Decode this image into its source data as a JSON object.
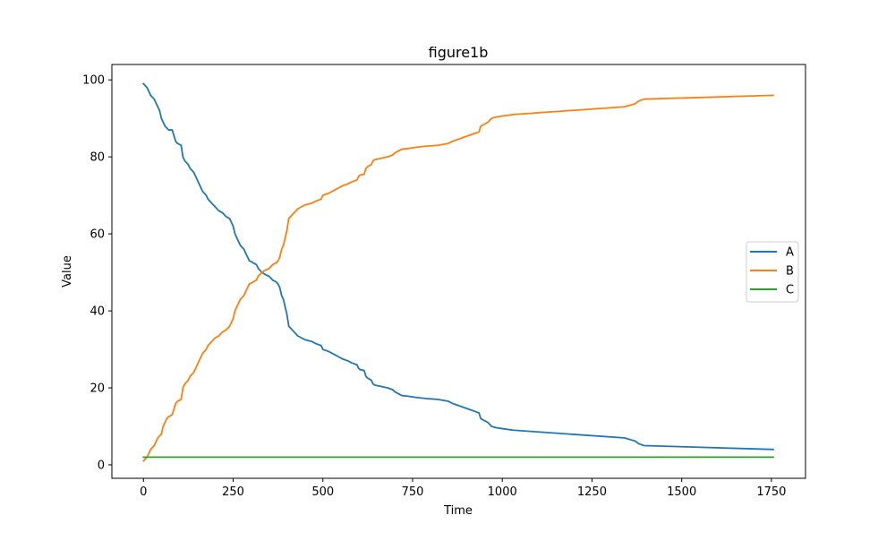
{
  "chart_data": {
    "type": "line",
    "title": "figure1b",
    "xlabel": "Time",
    "ylabel": "Value",
    "xlim": [
      -88,
      1845
    ],
    "ylim": [
      -3.5,
      104
    ],
    "xticks": [
      0,
      250,
      500,
      750,
      1000,
      1250,
      1500,
      1750
    ],
    "xtick_labels": [
      "0",
      "250",
      "500",
      "750",
      "1000",
      "1250",
      "1500",
      "1750"
    ],
    "yticks": [
      0,
      20,
      40,
      60,
      80,
      100
    ],
    "ytick_labels": [
      "0",
      "20",
      "40",
      "60",
      "80",
      "100"
    ],
    "grid": false,
    "legend_position": "center-right",
    "series": [
      {
        "name": "A",
        "color": "#1f77b4",
        "x": [
          0,
          10,
          15,
          20,
          30,
          35,
          40,
          45,
          50,
          55,
          60,
          65,
          70,
          80,
          90,
          95,
          105,
          110,
          115,
          125,
          130,
          140,
          145,
          150,
          160,
          165,
          175,
          180,
          190,
          200,
          210,
          220,
          230,
          240,
          245,
          250,
          255,
          260,
          265,
          270,
          280,
          285,
          290,
          295,
          300,
          305,
          315,
          320,
          325,
          330,
          335,
          340,
          350,
          360,
          370,
          375,
          380,
          385,
          390,
          395,
          400,
          405,
          410,
          415,
          420,
          430,
          440,
          450,
          470,
          480,
          495,
          500,
          505,
          515,
          525,
          535,
          545,
          555,
          570,
          580,
          595,
          600,
          605,
          615,
          620,
          625,
          635,
          640,
          645,
          660,
          680,
          695,
          700,
          710,
          720,
          740,
          760,
          790,
          820,
          850,
          860,
          875,
          890,
          905,
          920,
          935,
          940,
          950,
          960,
          970,
          980,
          1000,
          1030,
          1340,
          1370,
          1380,
          1395,
          1755
        ],
        "y": [
          99,
          98,
          97,
          96,
          95,
          94,
          93,
          92,
          90,
          89,
          88,
          87.5,
          87,
          87,
          84,
          83.5,
          83,
          80,
          79,
          78,
          77,
          76,
          75,
          74,
          72,
          71,
          70,
          69,
          68,
          67,
          66,
          65.5,
          64.5,
          64,
          63,
          62,
          60,
          59,
          58,
          57,
          56,
          55,
          54,
          53,
          52.8,
          52.5,
          52,
          51,
          50.5,
          50,
          49.7,
          49.4,
          49,
          48,
          47.5,
          47,
          46,
          44,
          43,
          41,
          39,
          36,
          35.5,
          35,
          34.5,
          33.5,
          33,
          32.5,
          32,
          31.5,
          31,
          30,
          29.8,
          29.5,
          29,
          28.5,
          28,
          27.5,
          27,
          26.5,
          26,
          25,
          24.7,
          24.5,
          23,
          22.5,
          22,
          21,
          20.7,
          20.4,
          20,
          19.5,
          19,
          18.5,
          18,
          17.8,
          17.5,
          17.2,
          17,
          16.5,
          16,
          15.5,
          15,
          14.5,
          14,
          13.5,
          12,
          11.5,
          11,
          10,
          9.7,
          9.4,
          9,
          7,
          6.2,
          5.5,
          5,
          4
        ]
      },
      {
        "name": "B",
        "color": "#ff7f0e",
        "x": [
          0,
          10,
          15,
          20,
          25,
          30,
          35,
          40,
          45,
          50,
          55,
          60,
          65,
          70,
          80,
          90,
          95,
          105,
          110,
          115,
          125,
          130,
          140,
          145,
          150,
          160,
          165,
          175,
          180,
          190,
          200,
          210,
          220,
          230,
          240,
          245,
          250,
          255,
          260,
          265,
          270,
          280,
          285,
          290,
          295,
          300,
          305,
          315,
          320,
          325,
          330,
          335,
          340,
          350,
          360,
          370,
          375,
          380,
          385,
          390,
          395,
          400,
          405,
          410,
          415,
          420,
          430,
          440,
          450,
          470,
          480,
          495,
          500,
          505,
          515,
          525,
          535,
          545,
          555,
          570,
          580,
          595,
          600,
          605,
          615,
          620,
          625,
          635,
          640,
          645,
          660,
          680,
          695,
          700,
          710,
          720,
          740,
          760,
          790,
          820,
          850,
          860,
          875,
          890,
          905,
          920,
          935,
          940,
          950,
          960,
          970,
          980,
          1000,
          1030,
          1340,
          1370,
          1380,
          1395,
          1755
        ],
        "y": [
          1,
          2,
          3,
          4,
          4.5,
          5,
          6,
          7,
          7.5,
          8,
          10,
          11,
          12,
          12.5,
          13,
          16,
          16.5,
          17,
          20,
          21,
          22,
          23,
          24,
          25,
          26,
          28,
          29,
          30,
          31,
          32,
          33,
          33.5,
          34.5,
          35,
          36,
          37,
          38,
          40,
          41,
          42,
          43,
          44,
          45,
          46,
          47,
          47.2,
          47.5,
          48,
          49,
          49.5,
          50,
          50.3,
          50.6,
          51,
          52,
          52.5,
          53,
          54,
          56,
          57,
          59,
          61,
          64,
          64.5,
          65,
          65.5,
          66.5,
          67,
          67.5,
          68,
          68.5,
          69,
          70,
          70.2,
          70.5,
          71,
          71.5,
          72,
          72.5,
          73,
          73.5,
          74,
          75,
          75.3,
          75.5,
          77,
          77.5,
          78,
          79,
          79.3,
          79.6,
          80,
          80.5,
          81,
          81.5,
          82,
          82.2,
          82.5,
          82.8,
          83,
          83.5,
          84,
          84.5,
          85,
          85.5,
          86,
          86.5,
          88,
          88.5,
          89,
          90,
          90.3,
          90.6,
          91,
          93,
          93.8,
          94.5,
          95,
          96
        ]
      },
      {
        "name": "C",
        "color": "#2ca02c",
        "x": [
          0,
          1755
        ],
        "y": [
          2,
          2
        ]
      }
    ]
  }
}
